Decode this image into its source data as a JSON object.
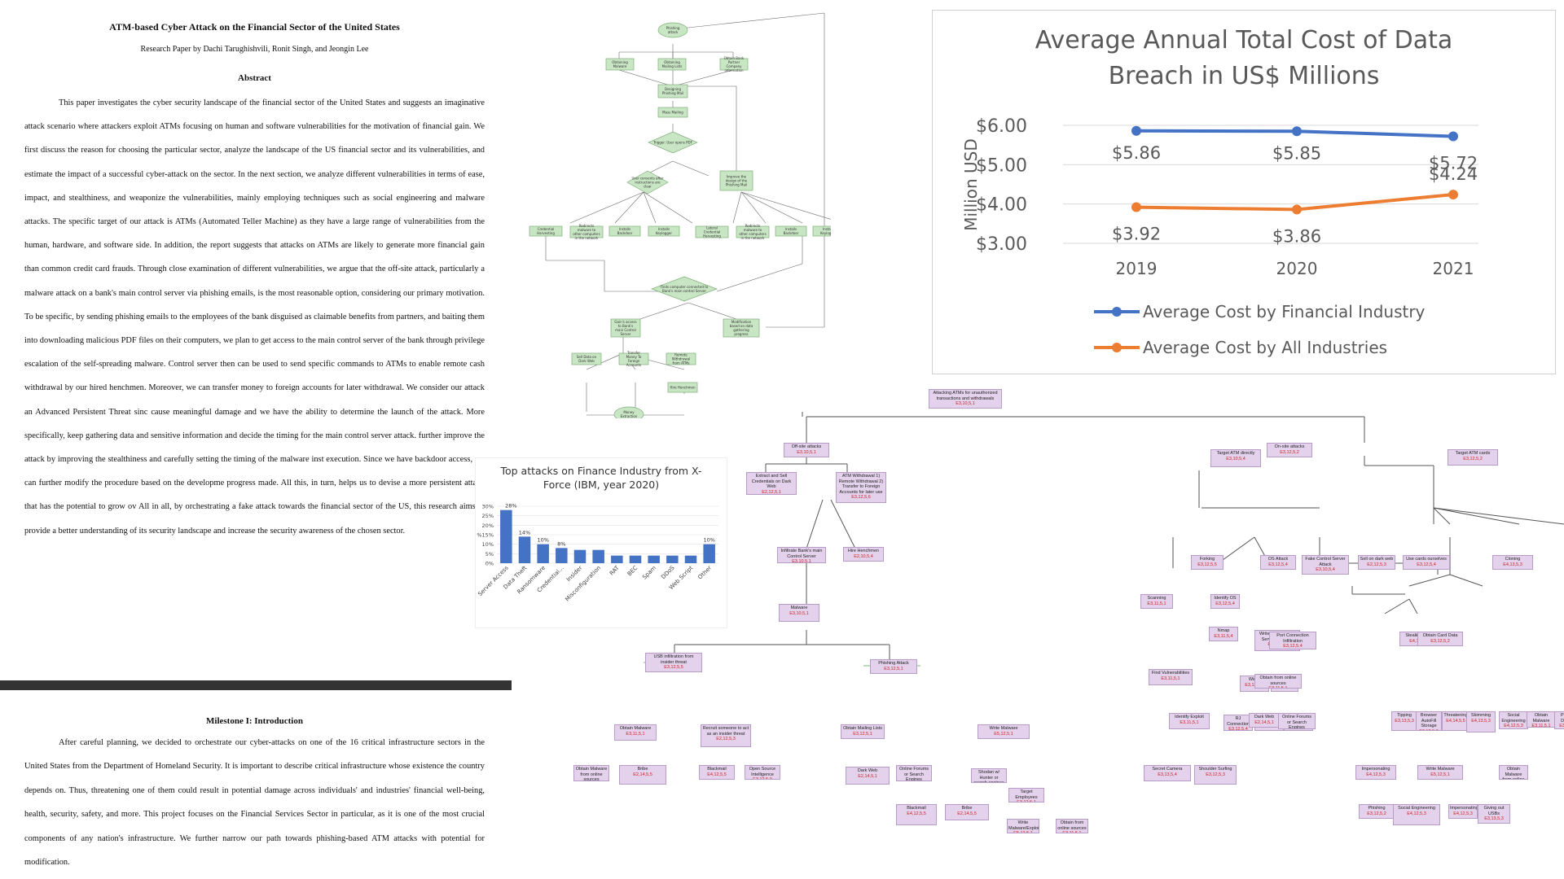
{
  "paper": {
    "title": "ATM-based Cyber Attack on the Financial Sector of the United States",
    "authors": "Research Paper by Dachi Tarughishvili, Ronit Singh, and Jeongin Lee",
    "abstract_heading": "Abstract",
    "abstract_text": "This paper investigates the cyber security landscape of the financial sector of the United States and suggests an imaginative attack scenario where attackers exploit ATMs focusing on human and software vulnerabilities for the motivation of financial gain. We first discuss the reason for choosing the particular sector, analyze the landscape of the US financial sector and its vulnerabilities, and estimate the impact of a successful cyber-attack on the sector. In the next section, we analyze different vulnerabilities in terms of ease, impact, and stealthiness, and weaponize the vulnerabilities, mainly employing techniques such as social engineering and malware attacks. The specific target of our attack is ATMs (Automated Teller Machine) as they have a large range of vulnerabilities from the human, hardware, and software side. In addition, the report suggests that attacks on ATMs are likely to generate more financial gain than common credit card frauds. Through close examination of different vulnerabilities, we argue that the off-site attack, particularly a malware attack on a bank's main control server via phishing emails, is the most reasonable option, considering our primary motivation. To be specific, by sending phishing emails to the employees of the bank disguised as claimable benefits from partners, and baiting them into downloading malicious PDF files on their computers, we plan to get access to the main control server of the bank through privilege escalation of the self-spreading malware. Control server then can be used to send specific commands to ATMs to enable remote cash withdrawal by our hired henchmen. Moreover, we can transfer money to foreign accounts for later withdrawal. We consider our attack an Advanced Persistent Threat sinc cause meaningful damage and we have the ability to determine the launch of the attack. More specifically, keep gathering data and sensitive information and decide the timing for the main control server attack. further improve the attack by improving the stealthiness and carefully setting the timing of the malware inst execution. Since we have backdoor access, we can further modify the procedure based on the developme progress made. All this, in turn, helps us to devise a more persistent attack that has the potential to grow ov All in all, by orchestrating a fake attack towards the financial sector of the US, this research aims to provide a better understanding of its security landscape and increase the security awareness of the chosen sector.",
    "milestone_heading": "Milestone I: Introduction",
    "milestone_text": "After careful planning, we decided to orchestrate our cyber-attacks on one of the 16 critical infrastructure sectors in the United States from the Department of Homeland Security. It is important to describe critical infrastructure whose existence the country depends on. Thus, threatening one of them could result in potential damage across individuals' and industries' financial well-being, health, security, safety, and more. This project focuses on the Financial Services Sector in particular, as it is one of the most crucial components of any nation's infrastructure. We further narrow our path towards phishing-based ATM attacks with potential for modification."
  },
  "chart_data": [
    {
      "type": "line",
      "title": "Average Annual Total Cost of Data Breach in US$ Millions",
      "ylabel": "Million USD",
      "xlabel": "",
      "x": [
        "2019",
        "2020",
        "2021"
      ],
      "ylim": [
        3,
        6
      ],
      "yticks": [
        "$3.00",
        "$4.00",
        "$5.00",
        "$6.00"
      ],
      "grid": true,
      "legend": "bottom",
      "series": [
        {
          "name": "Average Cost by Financial Industry",
          "values": [
            5.86,
            5.85,
            5.72
          ],
          "labels": [
            "$5.86",
            "$5.85",
            "$5.72"
          ],
          "color": "#4472c4"
        },
        {
          "name": "Average Cost by All Industries",
          "values": [
            3.92,
            3.86,
            4.24
          ],
          "labels": [
            "$3.92",
            "$3.86",
            "$4.24"
          ],
          "color": "#ed7d31"
        }
      ]
    },
    {
      "type": "bar",
      "title": "Top attacks on Finance Industry from X-Force (IBM, year 2020)",
      "categories": [
        "Server Access",
        "Data Theft",
        "Ransomware",
        "Credential...",
        "Insider",
        "Misconfiguration",
        "RAT",
        "BEC",
        "Spam",
        "DDoS",
        "Web Script",
        "Other"
      ],
      "values": [
        28,
        14,
        10,
        8,
        7,
        7,
        4,
        4,
        4,
        4,
        4,
        10
      ],
      "data_labels": [
        "28%",
        "14%",
        "10%",
        "8%",
        "",
        "",
        "",
        "",
        "",
        "",
        "",
        "10%"
      ],
      "ylim": [
        0,
        30
      ],
      "yticks": [
        "0%",
        "5%",
        "10%",
        "%15%",
        "20%",
        "25%",
        "30%"
      ],
      "grid": true,
      "color": "#4472c4"
    }
  ],
  "attack_tree": {
    "root": {
      "label": "Attacking ATMs for unauthorized transactions and withdrawals",
      "code": "E3,10,5,1"
    },
    "branches": [
      {
        "label": "Off-site attacks",
        "code": "E3,10,5,1"
      },
      {
        "label": "On-site attacks",
        "code": "E3,12,5,2"
      },
      {
        "label": "Extract and Sell Credentials on Dark Web",
        "code": "E2,12,5,1"
      },
      {
        "label": "ATM Withdrawal 1) Remote Withdrawal 2) Transfer to Foreign Accounts for later use",
        "code": "E3,12,5,6"
      },
      {
        "label": "Infiltrate Bank's main Control Server",
        "code": "E3,10,5,1"
      },
      {
        "label": "Hire Henchmen",
        "code": "E2,10,5,4"
      },
      {
        "label": "Malware",
        "code": "E3,10,5,1"
      },
      {
        "label": "USB infiltration from insider threat",
        "code": "E3,12,5,5"
      },
      {
        "label": "Phishing Attack",
        "code": "E3,12,5,1"
      },
      {
        "label": "Target ATM directly",
        "code": "E3,10,5,4"
      },
      {
        "label": "Target ATM cards",
        "code": "E3,12,5,2"
      },
      {
        "label": "Forking",
        "code": "E3,12,5,5"
      },
      {
        "label": "OS Attack",
        "code": "E3,12,5,4"
      },
      {
        "label": "Fake Control Server Attack",
        "code": "E3,10,5,4"
      },
      {
        "label": "Scanning",
        "code": "E3,11,5,1"
      },
      {
        "label": "Identify OS",
        "code": "E3,12,5,4"
      },
      {
        "label": "Write fake Control Server malware",
        "code": "E3,11,5,1"
      },
      {
        "label": "Sell on dark web",
        "code": "E2,12,5,3"
      },
      {
        "label": "Use cards ourselves",
        "code": "E3,12,5,4"
      },
      {
        "label": "Cloning",
        "code": "E4,13,5,3"
      },
      {
        "label": "Stealing Card",
        "code": "E4,12,5,3"
      },
      {
        "label": "Obtain Card Data",
        "code": "E3,12,5,2"
      },
      {
        "label": "Nmap",
        "code": "E3,11,5,4"
      },
      {
        "label": "Port Connection Infiltration",
        "code": "E3,12,5,4"
      },
      {
        "label": "Find Vulnerabilities",
        "code": "E3,11,5,1"
      },
      {
        "label": "Wired",
        "code": "E3,12,5,4"
      },
      {
        "label": "Wireless",
        "code": "E4,12,5,4"
      },
      {
        "label": "Obtain from online sources",
        "code": "E3,11,5,1"
      },
      {
        "label": "Identify Exploit",
        "code": "E3,11,5,1"
      },
      {
        "label": "RJ Connection",
        "code": "E3,12,5,4"
      },
      {
        "label": "USB-Port",
        "code": "E3,12,5,4"
      },
      {
        "label": "WiFi Attacks",
        "code": "E4,12,5,4"
      },
      {
        "label": "Dark Web",
        "code": "E2,14,5,1"
      },
      {
        "label": "Online Forums or Search Engines",
        "code": "E3,11,5,2"
      },
      {
        "label": "Obtain Malware",
        "code": "E3,11,5,1"
      },
      {
        "label": "Recruit someone to act as an insider threat",
        "code": "E2,12,5,3"
      },
      {
        "label": "Obtain Mailing Lists",
        "code": "E3,12,5,1"
      },
      {
        "label": "Write Malware",
        "code": "E5,12,5,1"
      },
      {
        "label": "Obtain Malware from online sources",
        "code": "E3,11,5,1"
      },
      {
        "label": "Bribe",
        "code": "E2,14,5,5"
      },
      {
        "label": "Blackmail",
        "code": "E4,12,5,5"
      },
      {
        "label": "Open Source Intelligence",
        "code": "E3,12,5,0"
      },
      {
        "label": "Dark Web",
        "code": "E2,14,5,1"
      },
      {
        "label": "Online Forums or Search Engines",
        "code": "E3,11,5,2"
      },
      {
        "label": "Shodan w/ Hunter or search engines",
        "code": "E3,12,5,1"
      },
      {
        "label": "Target Employees",
        "code": "E3,12,5,1"
      },
      {
        "label": "Blackmail",
        "code": "E4,12,5,5"
      },
      {
        "label": "Bribe",
        "code": "E2,14,5,5"
      },
      {
        "label": "Write Malware/Exploit",
        "code": "E5,12,5,1"
      },
      {
        "label": "Obtain from online sources",
        "code": "E3,11,5,1"
      },
      {
        "label": "Secret Camera",
        "code": "E3,13,5,4"
      },
      {
        "label": "Shoulder Surfing",
        "code": "E3,12,5,3"
      },
      {
        "label": "Tipping",
        "code": "E3,13,5,3"
      },
      {
        "label": "Browser AutoFill Storage",
        "code": "E3,12,5,2"
      },
      {
        "label": "Threatening",
        "code": "E4,14,5,5"
      },
      {
        "label": "Skimming",
        "code": "E4,13,5,3"
      },
      {
        "label": "Social Engineering",
        "code": "E4,12,5,3"
      },
      {
        "label": "Obtain Malware",
        "code": "E3,11,5,1"
      },
      {
        "label": "Payload Delivery",
        "code": "E3,12,5,2"
      },
      {
        "label": "Impersonating",
        "code": "E4,12,5,3"
      },
      {
        "label": "Write Malware",
        "code": "E5,12,5,1"
      },
      {
        "label": "Obtain Malware from online sources",
        "code": "E3,11,5,1"
      },
      {
        "label": "Phishing",
        "code": "E3,12,5,2"
      },
      {
        "label": "Social Engineering",
        "code": "E4,12,5,3"
      },
      {
        "label": "Impersonating",
        "code": "E4,12,5,3"
      },
      {
        "label": "Giving out USBs",
        "code": "E3,13,5,3"
      }
    ]
  },
  "flowchart": {
    "nodes": [
      "Phishing attack",
      "Obtaining Malware",
      "Obtaining Mailing Lists",
      "Obtain Bank Partner Company information",
      "Designing Phishing Mail",
      "Mass Mailing",
      "Trigger: User opens PDF",
      "User consents after instructions are clear",
      "Improve the design of the Phishing Mail",
      "Credential Harvesting",
      "Redirects malware to other computers in the network",
      "Installs Backdoor",
      "Installs Keylogger",
      "Lateral Credential Harvesting",
      "Redirects malware to other computers in the network",
      "Installs Backdoor",
      "Installs Keylogger",
      "Finds computer connected to Bank's main control Server",
      "Gain's access to Bank's main Control Server",
      "Modification based on data gathering progress",
      "Sell Data on Dark Web",
      "Transfer Money To Foreign Accounts",
      "Remote Withdrawal from ATMs",
      "Hire Henchmen",
      "Money Extraction"
    ]
  }
}
